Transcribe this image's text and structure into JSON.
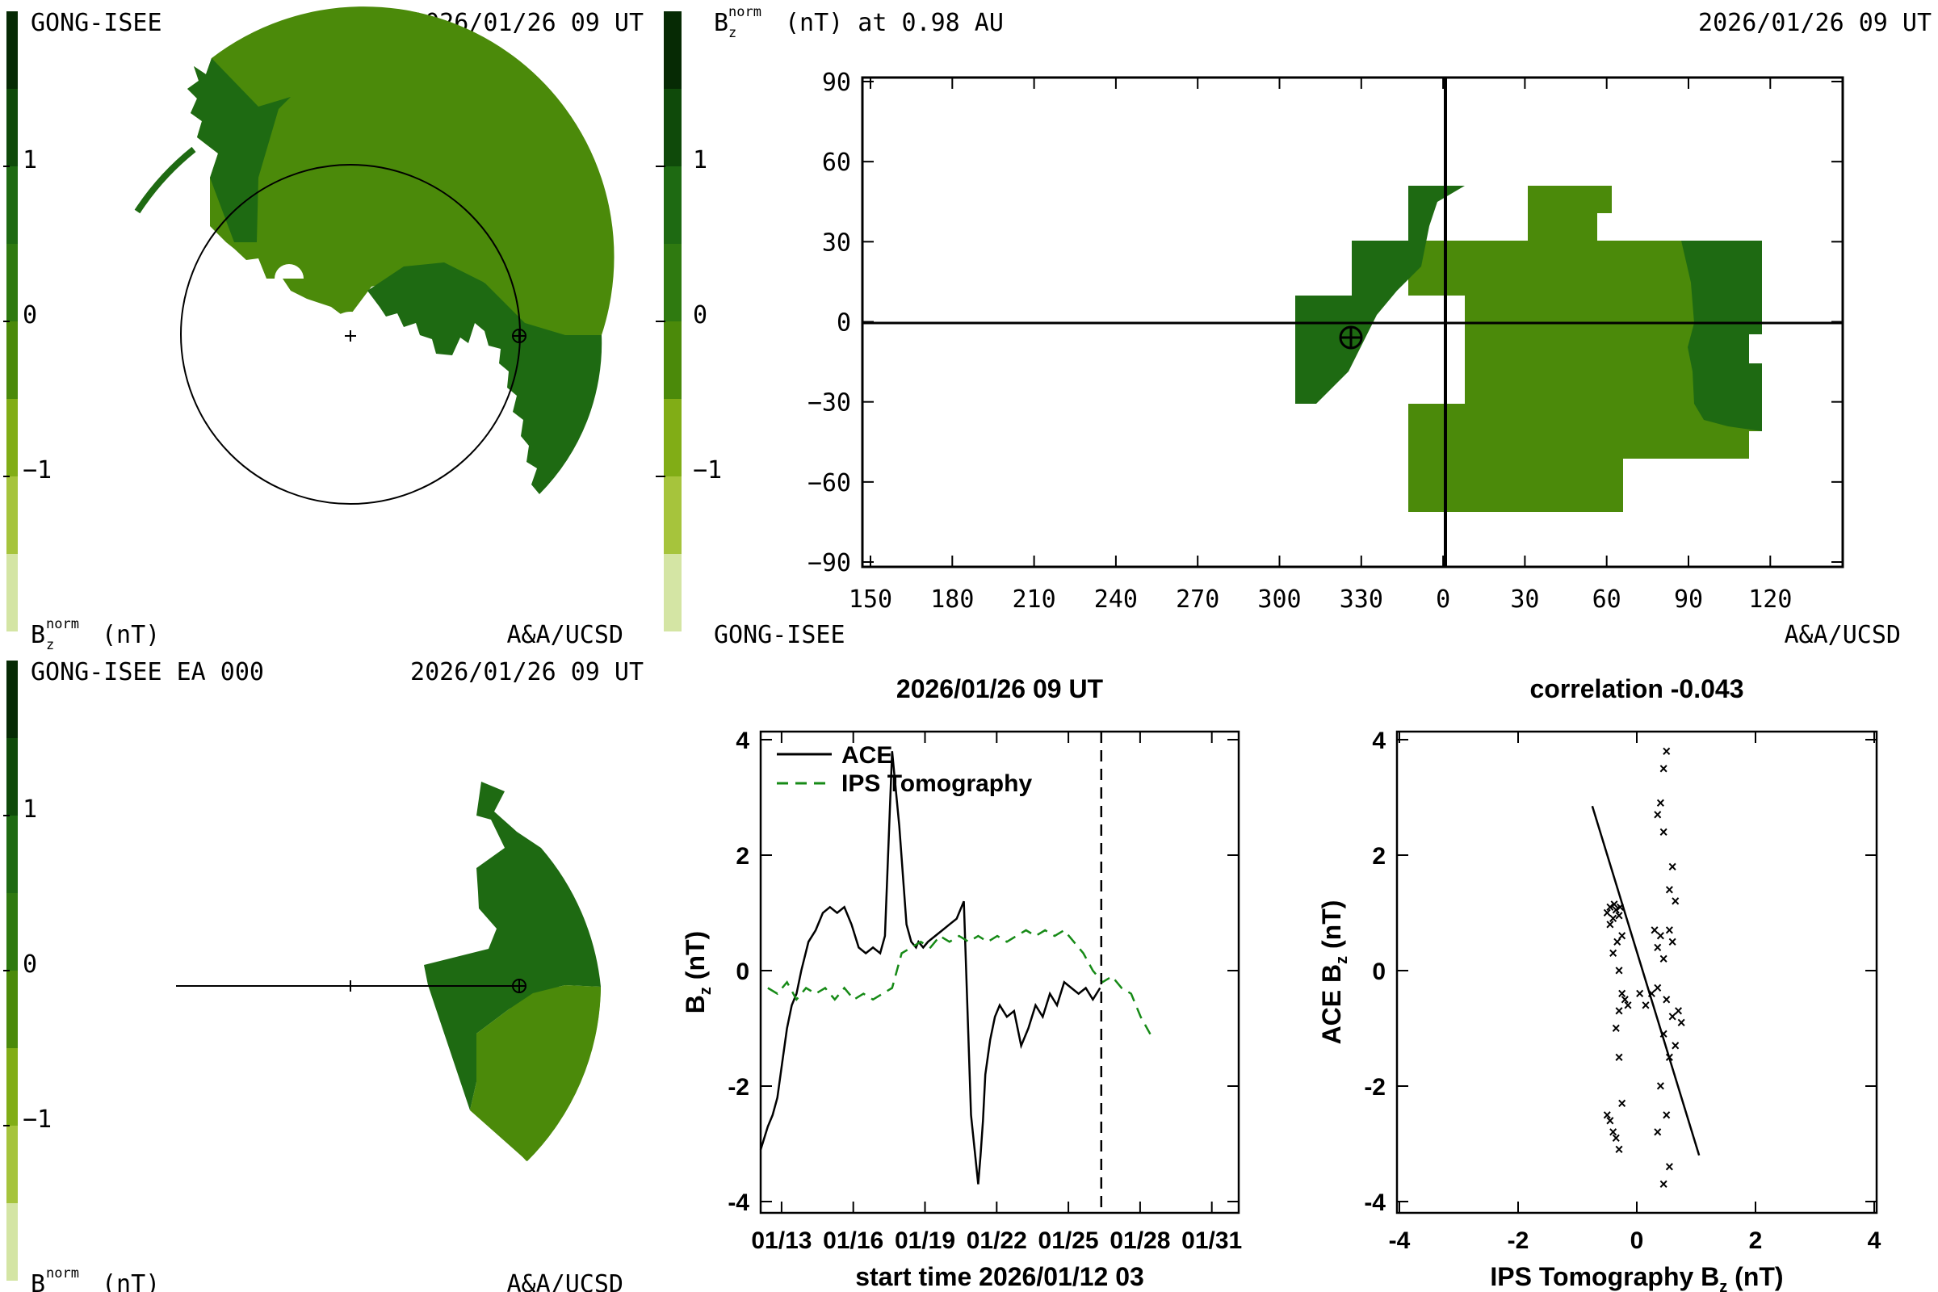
{
  "colors": {
    "scale": [
      "#d4e5a4",
      "#a6c43c",
      "#81ad16",
      "#4b8a0a",
      "#2f7a10",
      "#1e6a12",
      "#0f4a0a",
      "#062a04"
    ],
    "light_green": "#4b8a0a",
    "dark_green": "#1e6a12",
    "ips_line": "#168a16",
    "ace_line": "#000000"
  },
  "colorbar": {
    "ticks": [
      "1",
      "0",
      "−1"
    ],
    "label_main": "B",
    "label_sub": "z",
    "label_sup": "norm",
    "label_unit": "(nT)"
  },
  "panel_tl": {
    "title_left": "GONG-ISEE",
    "title_right": "2026/01/26 09 UT",
    "footer_right": "A&A/UCSD"
  },
  "panel_bl": {
    "title_left": "GONG-ISEE EA 000",
    "title_right": "2026/01/26 09 UT",
    "footer_right": "A&A/UCSD"
  },
  "panel_map": {
    "title_main": "B",
    "title_sub": "z",
    "title_sup": "norm",
    "title_rest": "(nT) at 0.98 AU",
    "title_right": "2026/01/26 09 UT",
    "footer_left": "GONG-ISEE",
    "footer_right": "A&A/UCSD",
    "y_ticks": [
      "90",
      "60",
      "30",
      "0",
      "−30",
      "−60",
      "−90"
    ],
    "x_ticks": [
      "150",
      "180",
      "210",
      "240",
      "270",
      "300",
      "330",
      "0",
      "30",
      "60",
      "90",
      "120"
    ]
  },
  "chart_data": [
    {
      "type": "line",
      "title": "2026/01/26 09 UT",
      "xlabel": "start time 2026/01/12 03",
      "ylabel": "B",
      "ylabel_sub": "z",
      "ylabel_unit": "(nT)",
      "ylim": [
        -4,
        4
      ],
      "x_tick_labels": [
        "01/13",
        "01/16",
        "01/19",
        "01/22",
        "01/25",
        "01/28",
        "01/31"
      ],
      "y_tick_labels": [
        "4",
        "2",
        "0",
        "-2",
        "-4"
      ],
      "x_days": [
        0.875,
        3.875,
        6.875,
        9.875,
        12.875,
        15.875,
        18.875
      ],
      "xlim_days": [
        0,
        20
      ],
      "now_marker_day": 14.25,
      "legend": [
        "ACE",
        "IPS Tomography"
      ],
      "series": [
        {
          "name": "ACE",
          "x": [
            0.0,
            0.3,
            0.5,
            0.7,
            0.9,
            1.1,
            1.3,
            1.5,
            1.7,
            2.0,
            2.3,
            2.6,
            2.9,
            3.2,
            3.5,
            3.8,
            4.1,
            4.4,
            4.7,
            5.0,
            5.2,
            5.5,
            5.8,
            6.1,
            6.3,
            6.5,
            6.6,
            6.8,
            7.0,
            7.3,
            7.6,
            7.9,
            8.2,
            8.5,
            8.8,
            9.1,
            9.2,
            9.3,
            9.4,
            9.6,
            9.8,
            10.0,
            10.3,
            10.6,
            10.9,
            11.2,
            11.5,
            11.8,
            12.1,
            12.4,
            12.7,
            13.0,
            13.3,
            13.6,
            13.9,
            14.2
          ],
          "values": [
            -3.1,
            -2.7,
            -2.5,
            -2.2,
            -1.6,
            -1.0,
            -0.6,
            -0.4,
            0.0,
            0.5,
            0.7,
            1.0,
            1.1,
            1.0,
            1.1,
            0.8,
            0.4,
            0.3,
            0.4,
            0.3,
            0.6,
            3.8,
            2.5,
            0.8,
            0.5,
            0.4,
            0.5,
            0.4,
            0.5,
            0.6,
            0.7,
            0.8,
            0.9,
            1.2,
            -2.5,
            -3.7,
            -3.2,
            -2.6,
            -1.8,
            -1.2,
            -0.8,
            -0.6,
            -0.8,
            -0.7,
            -1.3,
            -1.0,
            -0.6,
            -0.8,
            -0.4,
            -0.6,
            -0.2,
            -0.3,
            -0.4,
            -0.3,
            -0.5,
            -0.3
          ]
        },
        {
          "name": "IPS Tomography",
          "x": [
            0.3,
            0.7,
            1.1,
            1.5,
            1.9,
            2.3,
            2.7,
            3.1,
            3.5,
            3.9,
            4.3,
            4.7,
            5.1,
            5.5,
            5.9,
            6.3,
            6.7,
            7.1,
            7.5,
            7.9,
            8.3,
            8.7,
            9.1,
            9.5,
            9.9,
            10.3,
            10.7,
            11.1,
            11.5,
            11.9,
            12.3,
            12.7,
            13.1,
            13.5,
            13.9,
            14.3,
            14.7,
            15.1,
            15.5,
            15.9,
            16.3
          ],
          "values": [
            -0.3,
            -0.4,
            -0.2,
            -0.5,
            -0.3,
            -0.4,
            -0.3,
            -0.5,
            -0.3,
            -0.5,
            -0.4,
            -0.5,
            -0.4,
            -0.3,
            0.3,
            0.4,
            0.5,
            0.4,
            0.6,
            0.5,
            0.6,
            0.5,
            0.6,
            0.5,
            0.6,
            0.5,
            0.6,
            0.7,
            0.6,
            0.7,
            0.6,
            0.7,
            0.5,
            0.3,
            0.0,
            -0.2,
            -0.1,
            -0.3,
            -0.4,
            -0.8,
            -1.1
          ]
        }
      ]
    },
    {
      "type": "scatter",
      "title": "correlation -0.043",
      "xlabel": "IPS Tomography B",
      "xlabel_sub": "z",
      "xlabel_unit": "(nT)",
      "ylabel": "ACE B",
      "ylabel_sub": "z",
      "ylabel_unit": "(nT)",
      "xlim": [
        -4,
        4
      ],
      "ylim": [
        -4,
        4
      ],
      "x_tick_labels": [
        "-4",
        "-2",
        "0",
        "2",
        "4"
      ],
      "y_tick_labels": [
        "4",
        "2",
        "0",
        "-2",
        "-4"
      ],
      "fit_line": [
        [
          -0.75,
          2.85
        ],
        [
          1.05,
          -3.2
        ]
      ],
      "points": [
        [
          -0.5,
          1.0
        ],
        [
          -0.45,
          1.1
        ],
        [
          -0.4,
          0.9
        ],
        [
          -0.35,
          1.05
        ],
        [
          -0.3,
          0.95
        ],
        [
          -0.45,
          0.8
        ],
        [
          -0.38,
          1.15
        ],
        [
          -0.28,
          1.1
        ],
        [
          -0.33,
          0.5
        ],
        [
          -0.25,
          0.6
        ],
        [
          -0.4,
          0.3
        ],
        [
          -0.3,
          0.0
        ],
        [
          -0.25,
          -0.4
        ],
        [
          -0.3,
          -0.7
        ],
        [
          -0.2,
          -0.5
        ],
        [
          -0.15,
          -0.6
        ],
        [
          -0.35,
          -1.0
        ],
        [
          -0.3,
          -1.5
        ],
        [
          -0.25,
          -2.3
        ],
        [
          -0.45,
          -2.6
        ],
        [
          -0.4,
          -2.8
        ],
        [
          -0.35,
          -2.9
        ],
        [
          -0.3,
          -3.1
        ],
        [
          -0.5,
          -2.5
        ],
        [
          0.5,
          3.8
        ],
        [
          0.45,
          3.5
        ],
        [
          0.4,
          2.9
        ],
        [
          0.35,
          2.7
        ],
        [
          0.45,
          2.4
        ],
        [
          0.6,
          1.8
        ],
        [
          0.55,
          1.4
        ],
        [
          0.65,
          1.2
        ],
        [
          0.3,
          0.7
        ],
        [
          0.4,
          0.6
        ],
        [
          0.55,
          0.7
        ],
        [
          0.6,
          0.5
        ],
        [
          0.35,
          0.4
        ],
        [
          0.45,
          0.2
        ],
        [
          0.25,
          -0.4
        ],
        [
          0.35,
          -0.3
        ],
        [
          0.5,
          -0.5
        ],
        [
          0.6,
          -0.8
        ],
        [
          0.7,
          -0.7
        ],
        [
          0.75,
          -0.9
        ],
        [
          0.65,
          -1.3
        ],
        [
          0.55,
          -1.5
        ],
        [
          0.45,
          -1.1
        ],
        [
          0.4,
          -2.0
        ],
        [
          0.5,
          -2.5
        ],
        [
          0.35,
          -2.8
        ],
        [
          0.55,
          -3.4
        ],
        [
          0.45,
          -3.7
        ],
        [
          0.15,
          -0.6
        ],
        [
          0.05,
          -0.4
        ]
      ]
    }
  ]
}
